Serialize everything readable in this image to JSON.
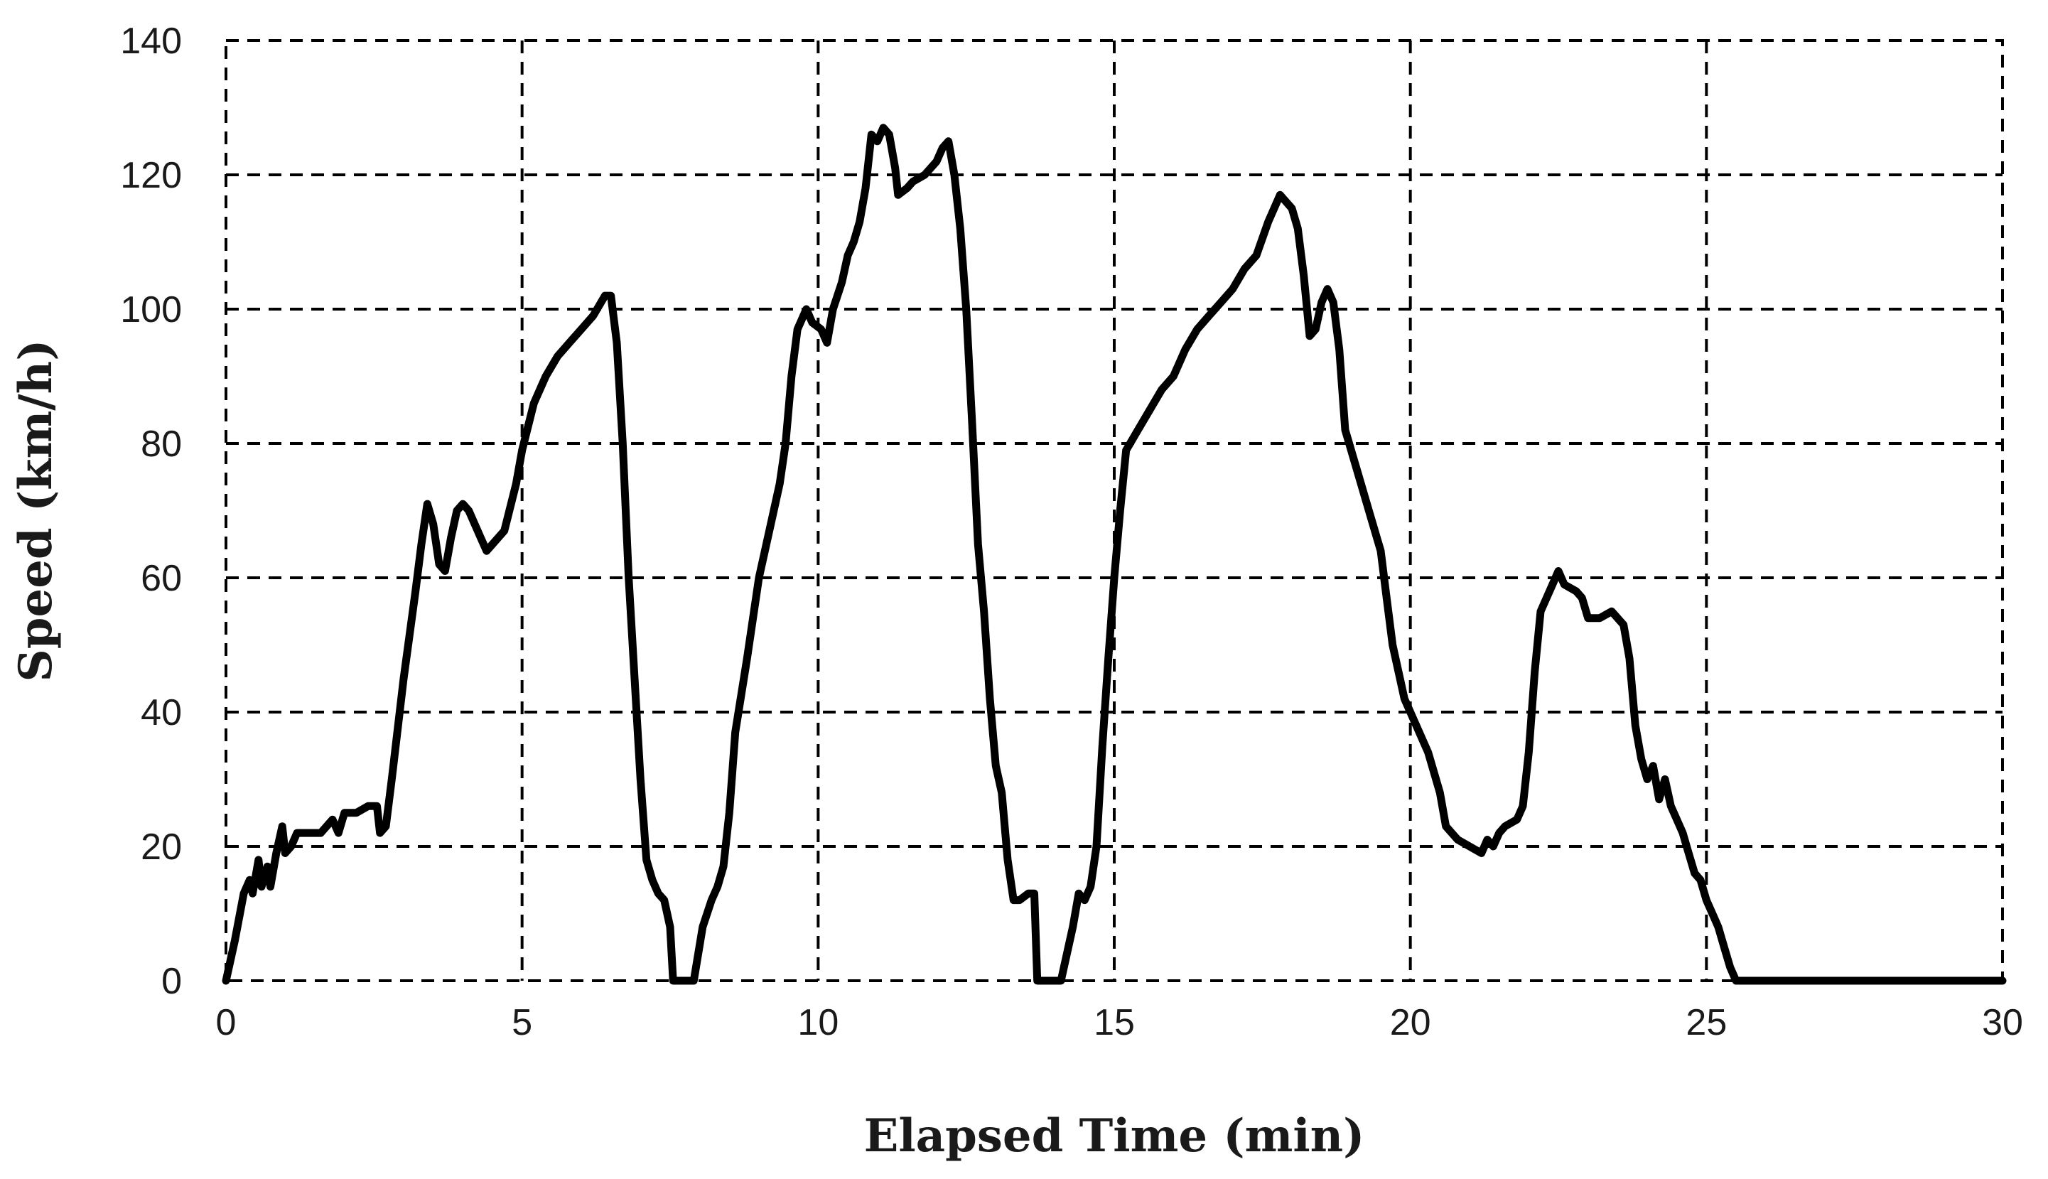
{
  "chart_data": {
    "type": "line",
    "xlabel": "Elapsed Time (min)",
    "ylabel": "Speed (km/h)",
    "xlim": [
      0,
      30
    ],
    "ylim": [
      0,
      140
    ],
    "x_ticks": [
      0,
      5,
      10,
      15,
      20,
      25,
      30
    ],
    "y_ticks": [
      0,
      20,
      40,
      60,
      80,
      100,
      120,
      140
    ],
    "x_tick_labels": [
      "0",
      "5",
      "10",
      "15",
      "20",
      "25",
      "30"
    ],
    "y_tick_labels": [
      "0",
      "20",
      "40",
      "60",
      "80",
      "100",
      "120",
      "140"
    ],
    "grid": true,
    "legend": "none",
    "line_color": "#000000",
    "series": [
      {
        "points": [
          [
            0,
            0
          ],
          [
            0.15,
            6
          ],
          [
            0.3,
            13
          ],
          [
            0.4,
            15
          ],
          [
            0.45,
            13
          ],
          [
            0.55,
            18
          ],
          [
            0.6,
            14
          ],
          [
            0.7,
            17
          ],
          [
            0.75,
            14
          ],
          [
            0.85,
            19
          ],
          [
            0.95,
            23
          ],
          [
            1.0,
            19
          ],
          [
            1.1,
            20
          ],
          [
            1.2,
            22
          ],
          [
            1.4,
            22
          ],
          [
            1.6,
            22
          ],
          [
            1.8,
            24
          ],
          [
            1.9,
            22
          ],
          [
            2.0,
            25
          ],
          [
            2.2,
            25
          ],
          [
            2.4,
            26
          ],
          [
            2.55,
            26
          ],
          [
            2.6,
            22
          ],
          [
            2.7,
            23
          ],
          [
            2.8,
            30
          ],
          [
            3.0,
            45
          ],
          [
            3.2,
            58
          ],
          [
            3.3,
            65
          ],
          [
            3.4,
            71
          ],
          [
            3.5,
            68
          ],
          [
            3.6,
            62
          ],
          [
            3.7,
            61
          ],
          [
            3.8,
            66
          ],
          [
            3.9,
            70
          ],
          [
            4.0,
            71
          ],
          [
            4.1,
            70
          ],
          [
            4.2,
            68
          ],
          [
            4.3,
            66
          ],
          [
            4.4,
            64
          ],
          [
            4.5,
            65
          ],
          [
            4.7,
            67
          ],
          [
            4.9,
            74
          ],
          [
            5.0,
            79
          ],
          [
            5.2,
            86
          ],
          [
            5.4,
            90
          ],
          [
            5.6,
            93
          ],
          [
            5.8,
            95
          ],
          [
            6.0,
            97
          ],
          [
            6.2,
            99
          ],
          [
            6.4,
            102
          ],
          [
            6.5,
            102
          ],
          [
            6.6,
            95
          ],
          [
            6.7,
            80
          ],
          [
            6.8,
            60
          ],
          [
            6.9,
            45
          ],
          [
            7.0,
            30
          ],
          [
            7.1,
            18
          ],
          [
            7.2,
            15
          ],
          [
            7.3,
            13
          ],
          [
            7.4,
            12
          ],
          [
            7.5,
            8
          ],
          [
            7.55,
            0
          ],
          [
            7.9,
            0
          ],
          [
            8.05,
            8
          ],
          [
            8.2,
            12
          ],
          [
            8.3,
            14
          ],
          [
            8.4,
            17
          ],
          [
            8.5,
            25
          ],
          [
            8.6,
            37
          ],
          [
            8.8,
            48
          ],
          [
            9.0,
            60
          ],
          [
            9.2,
            68
          ],
          [
            9.35,
            74
          ],
          [
            9.45,
            80
          ],
          [
            9.55,
            90
          ],
          [
            9.65,
            97
          ],
          [
            9.8,
            100
          ],
          [
            9.9,
            98
          ],
          [
            10.05,
            97
          ],
          [
            10.15,
            95
          ],
          [
            10.25,
            100
          ],
          [
            10.4,
            104
          ],
          [
            10.5,
            108
          ],
          [
            10.6,
            110
          ],
          [
            10.7,
            113
          ],
          [
            10.8,
            118
          ],
          [
            10.9,
            126
          ],
          [
            11.0,
            125
          ],
          [
            11.1,
            127
          ],
          [
            11.2,
            126
          ],
          [
            11.3,
            121
          ],
          [
            11.35,
            117
          ],
          [
            11.5,
            118
          ],
          [
            11.6,
            119
          ],
          [
            11.8,
            120
          ],
          [
            12.0,
            122
          ],
          [
            12.1,
            124
          ],
          [
            12.2,
            125
          ],
          [
            12.3,
            120
          ],
          [
            12.4,
            112
          ],
          [
            12.5,
            100
          ],
          [
            12.6,
            83
          ],
          [
            12.7,
            65
          ],
          [
            12.8,
            55
          ],
          [
            12.9,
            42
          ],
          [
            13.0,
            32
          ],
          [
            13.1,
            28
          ],
          [
            13.2,
            18
          ],
          [
            13.3,
            12
          ],
          [
            13.4,
            12
          ],
          [
            13.55,
            13
          ],
          [
            13.65,
            13
          ],
          [
            13.7,
            0
          ],
          [
            14.1,
            0
          ],
          [
            14.3,
            8
          ],
          [
            14.4,
            13
          ],
          [
            14.5,
            12
          ],
          [
            14.6,
            14
          ],
          [
            14.7,
            20
          ],
          [
            14.8,
            35
          ],
          [
            14.9,
            48
          ],
          [
            15.0,
            60
          ],
          [
            15.1,
            70
          ],
          [
            15.2,
            79
          ],
          [
            15.4,
            82
          ],
          [
            15.6,
            85
          ],
          [
            15.8,
            88
          ],
          [
            16.0,
            90
          ],
          [
            16.2,
            94
          ],
          [
            16.4,
            97
          ],
          [
            16.6,
            99
          ],
          [
            16.8,
            101
          ],
          [
            17.0,
            103
          ],
          [
            17.2,
            106
          ],
          [
            17.4,
            108
          ],
          [
            17.6,
            113
          ],
          [
            17.8,
            117
          ],
          [
            18.0,
            115
          ],
          [
            18.1,
            112
          ],
          [
            18.2,
            105
          ],
          [
            18.3,
            96
          ],
          [
            18.4,
            97
          ],
          [
            18.5,
            101
          ],
          [
            18.6,
            103
          ],
          [
            18.7,
            101
          ],
          [
            18.8,
            94
          ],
          [
            18.9,
            82
          ],
          [
            19.1,
            76
          ],
          [
            19.3,
            70
          ],
          [
            19.5,
            64
          ],
          [
            19.6,
            57
          ],
          [
            19.7,
            50
          ],
          [
            19.9,
            42
          ],
          [
            20.1,
            38
          ],
          [
            20.3,
            34
          ],
          [
            20.5,
            28
          ],
          [
            20.6,
            23
          ],
          [
            20.7,
            22
          ],
          [
            20.8,
            21
          ],
          [
            21.0,
            20
          ],
          [
            21.2,
            19
          ],
          [
            21.3,
            21
          ],
          [
            21.4,
            20
          ],
          [
            21.5,
            22
          ],
          [
            21.6,
            23
          ],
          [
            21.8,
            24
          ],
          [
            21.9,
            26
          ],
          [
            22.0,
            34
          ],
          [
            22.1,
            46
          ],
          [
            22.2,
            55
          ],
          [
            22.4,
            59
          ],
          [
            22.5,
            61
          ],
          [
            22.6,
            59
          ],
          [
            22.8,
            58
          ],
          [
            22.9,
            57
          ],
          [
            23.0,
            54
          ],
          [
            23.2,
            54
          ],
          [
            23.4,
            55
          ],
          [
            23.6,
            53
          ],
          [
            23.7,
            48
          ],
          [
            23.8,
            38
          ],
          [
            23.9,
            33
          ],
          [
            24.0,
            30
          ],
          [
            24.1,
            32
          ],
          [
            24.2,
            27
          ],
          [
            24.3,
            30
          ],
          [
            24.4,
            26
          ],
          [
            24.5,
            24
          ],
          [
            24.6,
            22
          ],
          [
            24.7,
            19
          ],
          [
            24.8,
            16
          ],
          [
            24.9,
            15
          ],
          [
            25.0,
            12
          ],
          [
            25.1,
            10
          ],
          [
            25.2,
            8
          ],
          [
            25.3,
            5
          ],
          [
            25.4,
            2
          ],
          [
            25.5,
            0
          ],
          [
            30,
            0
          ]
        ]
      }
    ]
  }
}
